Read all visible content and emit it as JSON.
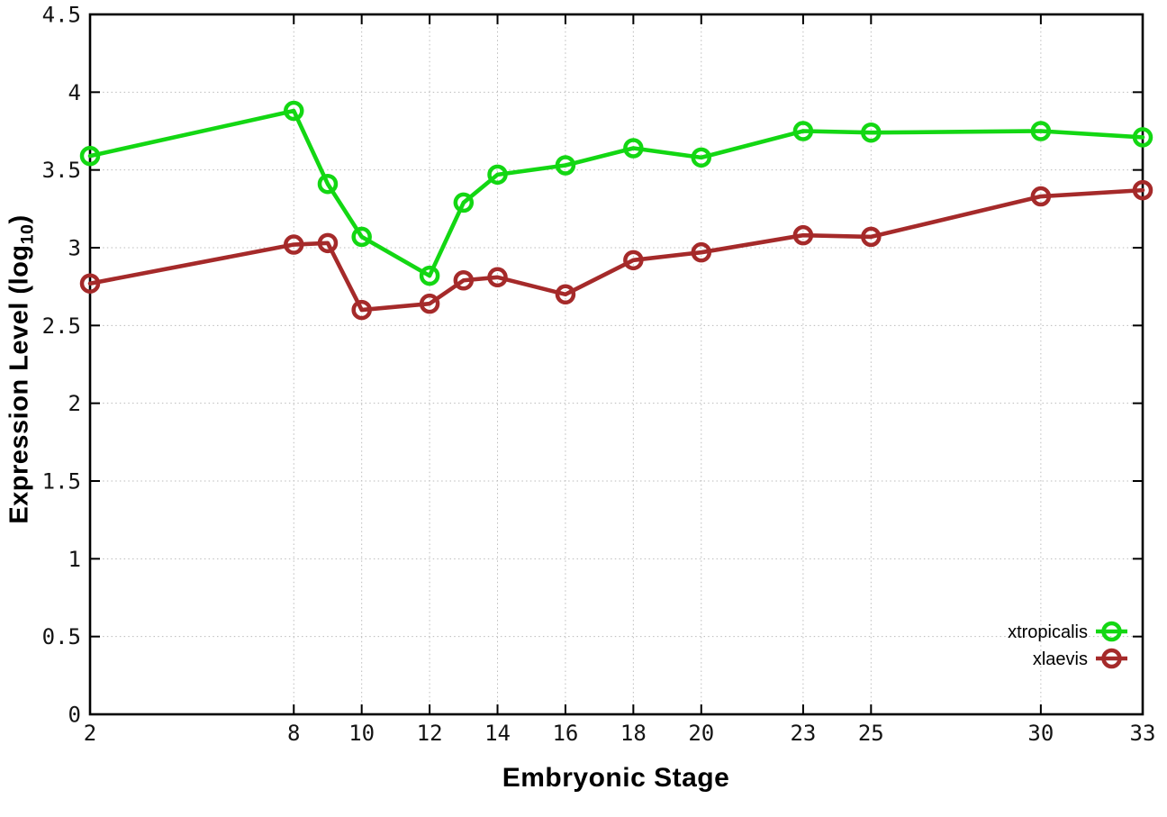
{
  "chart_data": {
    "type": "line",
    "title": "",
    "xlabel": "Embryonic Stage",
    "ylabel": "Expression Level (log10)",
    "ylabel_main": "Expression Level (log",
    "ylabel_sub": "10",
    "ylabel_close": ")",
    "x": [
      2,
      8,
      9,
      10,
      12,
      13,
      14,
      16,
      18,
      20,
      23,
      25,
      30,
      33
    ],
    "series": [
      {
        "name": "xtropicalis",
        "color": "#13d713",
        "values": [
          3.59,
          3.88,
          3.41,
          3.07,
          2.82,
          3.29,
          3.47,
          3.53,
          3.64,
          3.58,
          3.75,
          3.74,
          3.75,
          3.71
        ]
      },
      {
        "name": "xlaevis",
        "color": "#a52a2a",
        "values": [
          2.77,
          3.02,
          3.03,
          2.6,
          2.64,
          2.79,
          2.81,
          2.7,
          2.92,
          2.97,
          3.08,
          3.07,
          3.33,
          3.37
        ]
      }
    ],
    "xlim": [
      2,
      33
    ],
    "ylim": [
      0,
      4.5
    ],
    "xticks": {
      "values": [
        2,
        8,
        10,
        12,
        14,
        16,
        18,
        20,
        23,
        25,
        30,
        33
      ],
      "labels": [
        "2",
        "8",
        "10",
        "12",
        "14",
        "16",
        "18",
        "20",
        "23",
        "25",
        "30",
        "33"
      ]
    },
    "yticks": {
      "values": [
        0,
        0.5,
        1,
        1.5,
        2,
        2.5,
        3,
        3.5,
        4,
        4.5
      ],
      "labels": [
        "0",
        "0.5",
        "1",
        "1.5",
        "2",
        "2.5",
        "3",
        "3.5",
        "4",
        "4.5"
      ]
    },
    "grid": true,
    "grid_color": "#bbbbbb",
    "border_color": "#000000",
    "legend_position": "bottom-right",
    "legend_entries": [
      "xtropicalis",
      "xlaevis"
    ],
    "marker": "open-circle"
  }
}
